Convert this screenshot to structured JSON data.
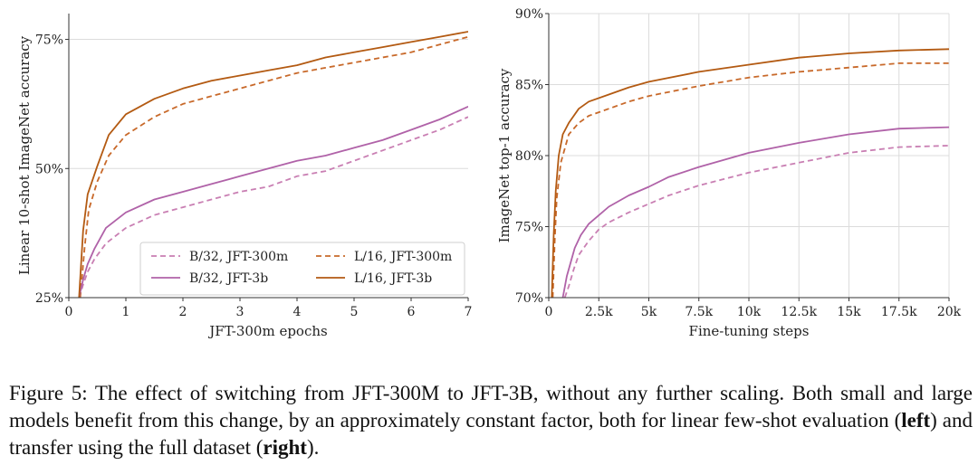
{
  "chart_data": [
    {
      "type": "line",
      "xlabel": "JFT-300m epochs",
      "ylabel": "Linear 10-shot ImageNet accuracy",
      "xlim": [
        0,
        7
      ],
      "ylim": [
        25,
        80
      ],
      "xticks": [
        "0",
        "1",
        "2",
        "3",
        "4",
        "5",
        "6",
        "7"
      ],
      "yticks": [
        "25%",
        "50%",
        "75%"
      ],
      "grid": "horizontal",
      "legend": "bottom-center",
      "series": [
        {
          "name": "B/32, JFT-300m",
          "color": "#c97fb3",
          "style": "dashed",
          "x": [
            0.18,
            0.25,
            0.33,
            0.45,
            0.65,
            1.0,
            1.5,
            2.0,
            2.5,
            3.0,
            3.5,
            4.0,
            4.5,
            5.0,
            5.5,
            6.0,
            6.5,
            7.0
          ],
          "y": [
            25,
            27.5,
            30,
            32.5,
            35.5,
            38.5,
            41,
            42.5,
            44,
            45.5,
            46.5,
            48.5,
            49.5,
            51.5,
            53.5,
            55.5,
            57.5,
            60
          ]
        },
        {
          "name": "L/16, JFT-300m",
          "color": "#c8692a",
          "style": "dashed",
          "x": [
            0.2,
            0.28,
            0.35,
            0.5,
            0.7,
            1.0,
            1.5,
            2.0,
            2.5,
            3.0,
            3.5,
            4.0,
            4.5,
            5.0,
            5.5,
            6.0,
            6.5,
            7.0
          ],
          "y": [
            25,
            35,
            42,
            47.5,
            52.5,
            56.5,
            60,
            62.5,
            64,
            65.5,
            67,
            68.5,
            69.5,
            70.5,
            71.5,
            72.5,
            74,
            75.5
          ]
        },
        {
          "name": "B/32, JFT-3b",
          "color": "#b062a8",
          "style": "solid",
          "x": [
            0.18,
            0.25,
            0.33,
            0.45,
            0.65,
            1.0,
            1.5,
            2.0,
            2.5,
            3.0,
            3.5,
            4.0,
            4.5,
            5.0,
            5.5,
            6.0,
            6.5,
            7.0
          ],
          "y": [
            25,
            28.5,
            31.5,
            34.5,
            38.5,
            41.5,
            44,
            45.5,
            47,
            48.5,
            50,
            51.5,
            52.5,
            54,
            55.5,
            57.5,
            59.5,
            62
          ]
        },
        {
          "name": "L/16, JFT-3b",
          "color": "#b35a12",
          "style": "solid",
          "x": [
            0.18,
            0.25,
            0.33,
            0.5,
            0.7,
            1.0,
            1.5,
            2.0,
            2.5,
            3.0,
            3.5,
            4.0,
            4.5,
            5.0,
            5.5,
            6.0,
            6.5,
            7.0
          ],
          "y": [
            25,
            38,
            45,
            50.5,
            56.5,
            60.5,
            63.5,
            65.5,
            67,
            68,
            69,
            70,
            71.5,
            72.5,
            73.5,
            74.5,
            75.5,
            76.5
          ]
        }
      ]
    },
    {
      "type": "line",
      "xlabel": "Fine-tuning steps",
      "ylabel": "ImageNet top-1 accuracy",
      "xlim": [
        0,
        20000
      ],
      "ylim": [
        70,
        90
      ],
      "xticks": [
        "0",
        "2.5k",
        "5k",
        "7.5k",
        "10k",
        "12.5k",
        "15k",
        "17.5k",
        "20k"
      ],
      "yticks": [
        "70%",
        "75%",
        "80%",
        "85%",
        "90%"
      ],
      "grid": "both",
      "legend": "none",
      "series": [
        {
          "name": "B/32, JFT-300m",
          "color": "#c97fb3",
          "style": "dashed",
          "x": [
            800,
            1000,
            1250,
            1500,
            2000,
            2500,
            3000,
            4000,
            5000,
            6000,
            7500,
            10000,
            12500,
            15000,
            17500,
            20000
          ],
          "y": [
            70,
            70.8,
            72,
            73,
            74,
            74.8,
            75.3,
            76,
            76.6,
            77.2,
            77.9,
            78.8,
            79.5,
            80.2,
            80.6,
            80.7
          ]
        },
        {
          "name": "L/16, JFT-300m",
          "color": "#c8692a",
          "style": "dashed",
          "x": [
            200,
            300,
            400,
            600,
            800,
            1000,
            1500,
            2000,
            3000,
            4000,
            5000,
            7500,
            10000,
            12500,
            15000,
            17500,
            20000
          ],
          "y": [
            70,
            74,
            77,
            79.5,
            80.5,
            81.5,
            82.3,
            82.8,
            83.3,
            83.8,
            84.2,
            84.9,
            85.5,
            85.9,
            86.2,
            86.5,
            86.5
          ]
        },
        {
          "name": "B/32, JFT-3b",
          "color": "#b062a8",
          "style": "solid",
          "x": [
            700,
            900,
            1100,
            1300,
            1600,
            2000,
            2500,
            3000,
            4000,
            5000,
            6000,
            7500,
            10000,
            12500,
            15000,
            17500,
            20000
          ],
          "y": [
            70,
            71.5,
            72.5,
            73.5,
            74.4,
            75.2,
            75.8,
            76.4,
            77.2,
            77.8,
            78.5,
            79.2,
            80.2,
            80.9,
            81.5,
            81.9,
            82
          ]
        },
        {
          "name": "L/16, JFT-3b",
          "color": "#b35a12",
          "style": "solid",
          "x": [
            150,
            250,
            350,
            500,
            700,
            1000,
            1500,
            2000,
            3000,
            4000,
            5000,
            7500,
            10000,
            12500,
            15000,
            17500,
            20000
          ],
          "y": [
            70,
            74.5,
            77.5,
            80,
            81.5,
            82.3,
            83.3,
            83.8,
            84.3,
            84.8,
            85.2,
            85.9,
            86.4,
            86.9,
            87.2,
            87.4,
            87.5
          ]
        }
      ]
    }
  ],
  "caption": {
    "part1": "Figure 5: The effect of switching from JFT-300M to JFT-3B, without any further scaling. Both small and large models benefit from this change, by an approximately constant factor, both for linear few-shot evaluation (",
    "bold1": "left",
    "part2": ") and transfer using the full dataset (",
    "bold2": "right",
    "part3": ")."
  }
}
